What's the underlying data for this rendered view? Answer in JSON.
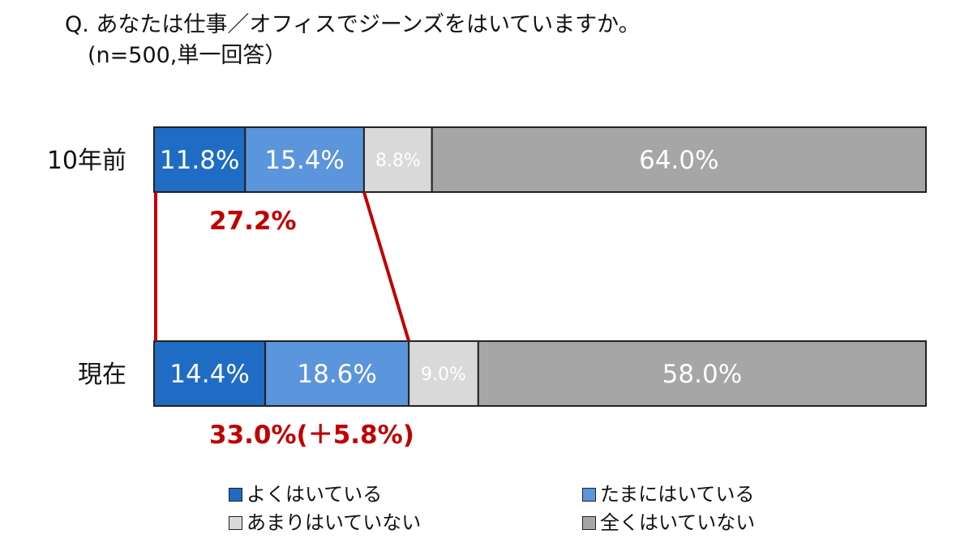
{
  "title": "Q. あなたは仕事／オフィスでジーンズをはいていますか。",
  "subtitle": "(n=500,単一回答）",
  "colors": {
    "often": "#1F6CC4",
    "sometimes": "#5B95DB",
    "rarely": "#D9D9D9",
    "never": "#A6A6A6",
    "annotation": "#C00000"
  },
  "chart_data": {
    "type": "bar",
    "orientation": "horizontal",
    "stacked": true,
    "unit": "%",
    "xlim": [
      0,
      100
    ],
    "categories": [
      "10年前",
      "現在"
    ],
    "series": [
      {
        "name": "よくはいている",
        "values": [
          11.8,
          14.4
        ],
        "labels": [
          "11.8%",
          "14.4%"
        ]
      },
      {
        "name": "たまにはいている",
        "values": [
          15.4,
          18.6
        ],
        "labels": [
          "15.4%",
          "18.6%"
        ]
      },
      {
        "name": "あまりはいていない",
        "values": [
          8.8,
          9.0
        ],
        "labels": [
          "8.8%",
          "9.0%"
        ]
      },
      {
        "name": "全くはいていない",
        "values": [
          64.0,
          58.0
        ],
        "labels": [
          "64.0%",
          "58.0%"
        ]
      }
    ],
    "annotations": [
      {
        "category": "10年前",
        "text": "27.2%"
      },
      {
        "category": "現在",
        "text": "33.0%(＋5.8%)"
      }
    ],
    "legend": {
      "placement": "bottom",
      "items": [
        "よくはいている",
        "たまにはいている",
        "あまりはいていない",
        "全くはいていない"
      ]
    }
  }
}
